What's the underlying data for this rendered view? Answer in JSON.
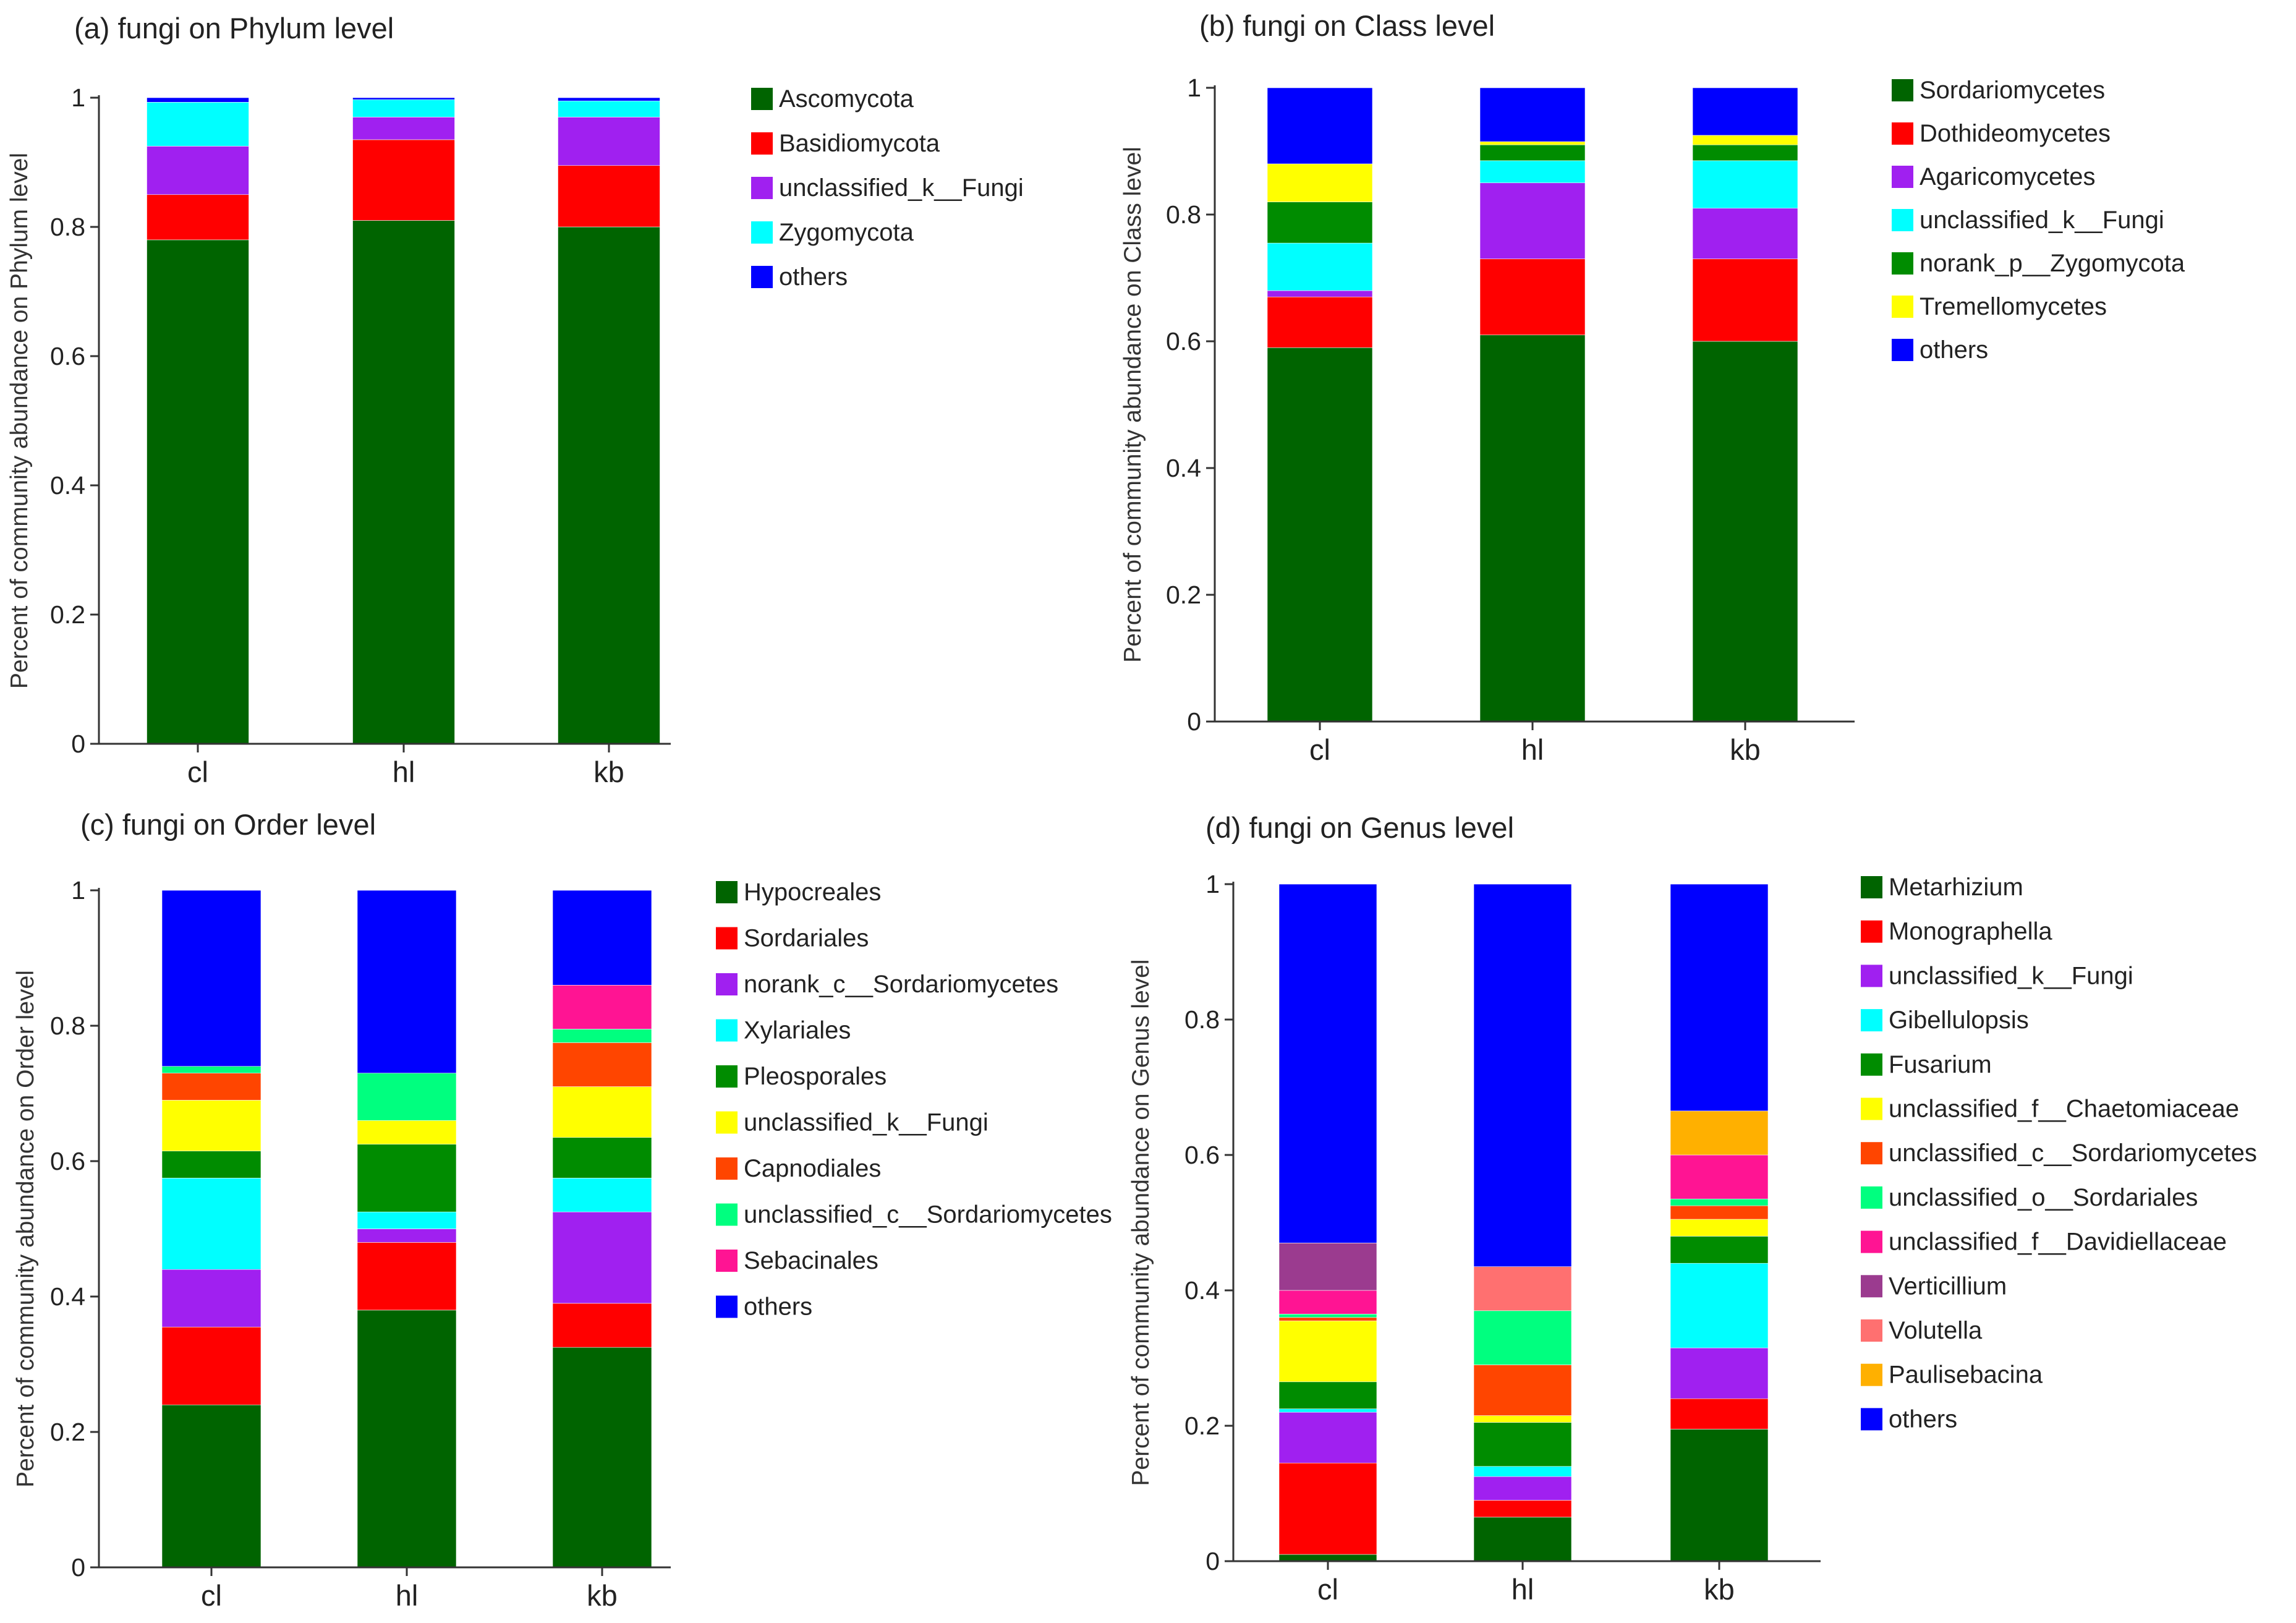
{
  "chart_data": [
    {
      "type": "stacked-bar",
      "title": "(a) fungi on Phylum level",
      "ylabel": "Percent of community abundance on Phylum level",
      "xlabel": "",
      "ylim": [
        0,
        1
      ],
      "yticks": [
        "0",
        "0.2",
        "0.4",
        "0.6",
        "0.8",
        "1"
      ],
      "categories": [
        "cl",
        "hl",
        "kb"
      ],
      "series": [
        {
          "name": "Ascomycota",
          "color": "#006400",
          "values": [
            0.78,
            0.81,
            0.8
          ]
        },
        {
          "name": "Basidiomycota",
          "color": "#ff0000",
          "values": [
            0.07,
            0.125,
            0.095
          ]
        },
        {
          "name": "unclassified_k__Fungi",
          "color": "#a020f0",
          "values": [
            0.075,
            0.035,
            0.075
          ]
        },
        {
          "name": "Zygomycota",
          "color": "#00ffff",
          "values": [
            0.068,
            0.027,
            0.025
          ]
        },
        {
          "name": "others",
          "color": "#0000ff",
          "values": [
            0.007,
            0.003,
            0.005
          ]
        }
      ]
    },
    {
      "type": "stacked-bar",
      "title": "(b) fungi on Class level",
      "ylabel": "Percent of community abundance on Class level",
      "xlabel": "",
      "ylim": [
        0,
        1
      ],
      "yticks": [
        "0",
        "0.2",
        "0.4",
        "0.6",
        "0.8",
        "1"
      ],
      "categories": [
        "cl",
        "hl",
        "kb"
      ],
      "series": [
        {
          "name": "Sordariomycetes",
          "color": "#006400",
          "values": [
            0.59,
            0.61,
            0.6
          ]
        },
        {
          "name": "Dothideomycetes",
          "color": "#ff0000",
          "values": [
            0.08,
            0.12,
            0.13
          ]
        },
        {
          "name": "Agaricomycetes",
          "color": "#a020f0",
          "values": [
            0.01,
            0.12,
            0.08
          ]
        },
        {
          "name": "unclassified_k__Fungi",
          "color": "#00ffff",
          "values": [
            0.075,
            0.035,
            0.075
          ]
        },
        {
          "name": "norank_p__Zygomycota",
          "color": "#008c00",
          "values": [
            0.065,
            0.025,
            0.025
          ]
        },
        {
          "name": "Tremellomycetes",
          "color": "#ffff00",
          "values": [
            0.06,
            0.005,
            0.015
          ]
        },
        {
          "name": "others",
          "color": "#0000ff",
          "values": [
            0.12,
            0.085,
            0.075
          ]
        }
      ]
    },
    {
      "type": "stacked-bar",
      "title": "(c) fungi on Order level",
      "ylabel": "Percent of community abundance on Order level",
      "xlabel": "",
      "ylim": [
        0,
        1
      ],
      "yticks": [
        "0",
        "0.2",
        "0.4",
        "0.6",
        "0.8",
        "1"
      ],
      "categories": [
        "cl",
        "hl",
        "kb"
      ],
      "series": [
        {
          "name": "Hypocreales",
          "color": "#006400",
          "values": [
            0.24,
            0.38,
            0.325
          ]
        },
        {
          "name": "Sordariales",
          "color": "#ff0000",
          "values": [
            0.115,
            0.1,
            0.065
          ]
        },
        {
          "name": "norank_c__Sordariomycetes",
          "color": "#a020f0",
          "values": [
            0.085,
            0.02,
            0.135
          ]
        },
        {
          "name": "Xylariales",
          "color": "#00ffff",
          "values": [
            0.135,
            0.025,
            0.05
          ]
        },
        {
          "name": "Pleosporales",
          "color": "#008c00",
          "values": [
            0.04,
            0.1,
            0.06
          ]
        },
        {
          "name": "unclassified_k__Fungi",
          "color": "#ffff00",
          "values": [
            0.075,
            0.035,
            0.075
          ]
        },
        {
          "name": "Capnodiales",
          "color": "#ff4500",
          "values": [
            0.04,
            0.0,
            0.065
          ]
        },
        {
          "name": "unclassified_c__Sordariomycetes",
          "color": "#00ff7f",
          "values": [
            0.01,
            0.07,
            0.02
          ]
        },
        {
          "name": "Sebacinales",
          "color": "#ff1493",
          "values": [
            0.0,
            0.0,
            0.065
          ]
        },
        {
          "name": "others",
          "color": "#0000ff",
          "values": [
            0.26,
            0.27,
            0.14
          ]
        }
      ]
    },
    {
      "type": "stacked-bar",
      "title": "(d) fungi on Genus level",
      "ylabel": "Percent of community abundance on Genus level",
      "xlabel": "",
      "ylim": [
        0,
        1
      ],
      "yticks": [
        "0",
        "0.2",
        "0.4",
        "0.6",
        "0.8",
        "1"
      ],
      "categories": [
        "cl",
        "hl",
        "kb"
      ],
      "series": [
        {
          "name": "Metarhizium",
          "color": "#006400",
          "values": [
            0.01,
            0.065,
            0.195
          ]
        },
        {
          "name": "Monographella",
          "color": "#ff0000",
          "values": [
            0.135,
            0.025,
            0.045
          ]
        },
        {
          "name": "unclassified_k__Fungi",
          "color": "#a020f0",
          "values": [
            0.075,
            0.035,
            0.075
          ]
        },
        {
          "name": "Gibellulopsis",
          "color": "#00ffff",
          "values": [
            0.005,
            0.015,
            0.125
          ]
        },
        {
          "name": "Fusarium",
          "color": "#008c00",
          "values": [
            0.04,
            0.065,
            0.04
          ]
        },
        {
          "name": "unclassified_f__Chaetomiaceae",
          "color": "#ffff00",
          "values": [
            0.09,
            0.01,
            0.025
          ]
        },
        {
          "name": "unclassified_c__Sordariomycetes",
          "color": "#ff4500",
          "values": [
            0.005,
            0.075,
            0.02
          ]
        },
        {
          "name": "unclassified_o__Sordariales",
          "color": "#00ff7f",
          "values": [
            0.005,
            0.08,
            0.01
          ]
        },
        {
          "name": "unclassified_f__Davidiellaceae",
          "color": "#ff1493",
          "values": [
            0.035,
            0.0,
            0.065
          ]
        },
        {
          "name": "Verticillium",
          "color": "#9b3b8f",
          "values": [
            0.07,
            0.0,
            0.0
          ]
        },
        {
          "name": "Volutella",
          "color": "#ff7070",
          "values": [
            0.0,
            0.065,
            0.0
          ]
        },
        {
          "name": "Paulisebacina",
          "color": "#ffb000",
          "values": [
            0.0,
            0.0,
            0.065
          ]
        },
        {
          "name": "others",
          "color": "#0000ff",
          "values": [
            0.53,
            0.565,
            0.335
          ]
        }
      ]
    }
  ]
}
